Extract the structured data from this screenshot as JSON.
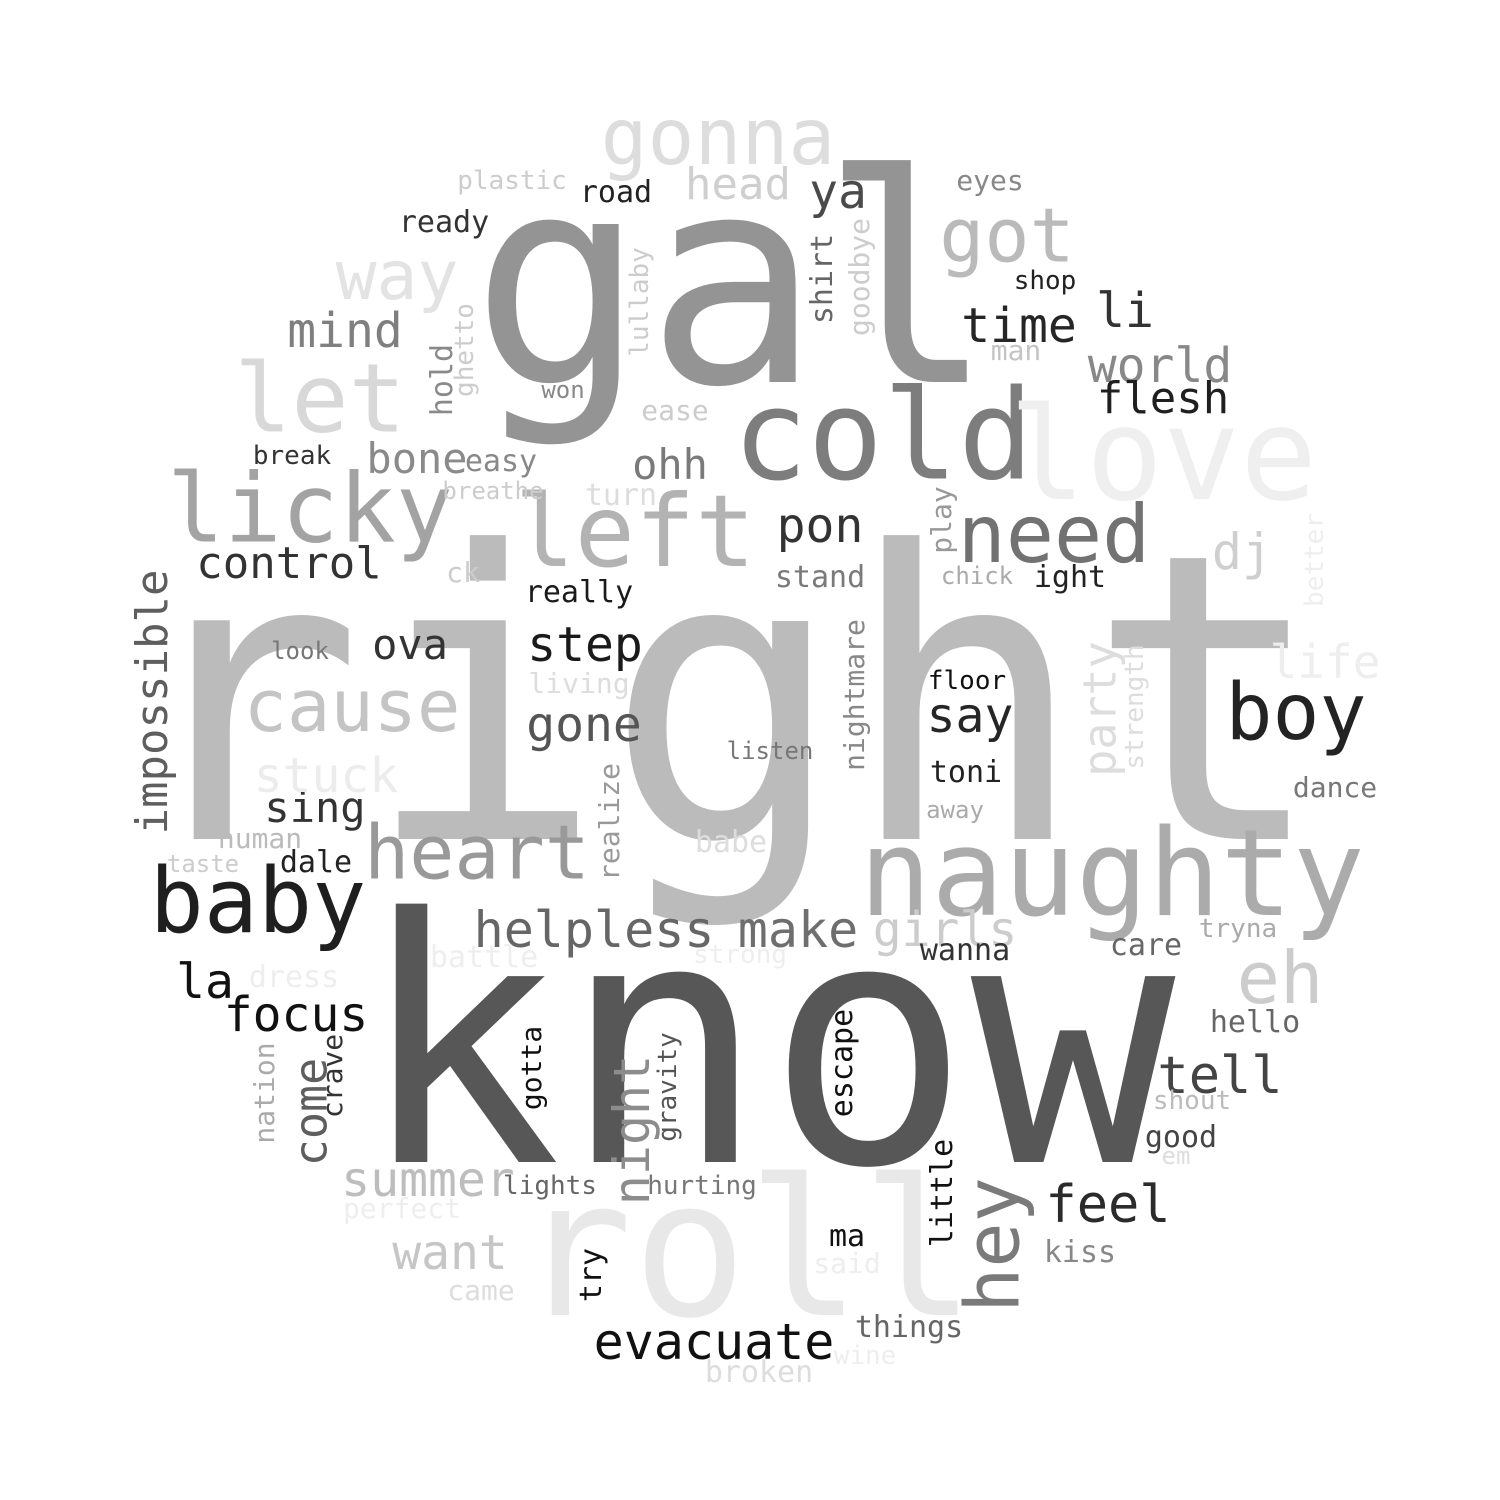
{
  "words": [
    {
      "text": "right",
      "color": "#bbbbbb"
    },
    {
      "text": "know",
      "color": "#575757"
    },
    {
      "text": "gal",
      "color": "#949494"
    },
    {
      "text": "roll",
      "color": "#e8e8e8"
    },
    {
      "text": "naughty",
      "color": "#ababab"
    },
    {
      "text": "cold",
      "color": "#7d7d7d"
    },
    {
      "text": "love",
      "color": "#efefef"
    },
    {
      "text": "licky",
      "color": "#a3a3a3"
    },
    {
      "text": "left",
      "color": "#b3b3b3"
    },
    {
      "text": "gonna",
      "color": "#dddddd"
    },
    {
      "text": "let",
      "color": "#d8d8d8"
    },
    {
      "text": "baby",
      "color": "#1f1f1f"
    },
    {
      "text": "need",
      "color": "#727272"
    },
    {
      "text": "heart",
      "color": "#999999"
    },
    {
      "text": "cause",
      "color": "#c4c4c4"
    },
    {
      "text": "boy",
      "color": "#232323"
    },
    {
      "text": "got",
      "color": "#bababa"
    },
    {
      "text": "way",
      "color": "#e3e3e3"
    },
    {
      "text": "eh",
      "color": "#cccccc"
    },
    {
      "text": "helpless",
      "color": "#666666"
    },
    {
      "text": "make",
      "color": "#6e6e6e"
    },
    {
      "text": "hey",
      "color": "#7a7a7a"
    },
    {
      "text": "evacuate",
      "color": "#111111"
    },
    {
      "text": "world",
      "color": "#888888"
    },
    {
      "text": "time",
      "color": "#262626"
    },
    {
      "text": "pon",
      "color": "#333333"
    },
    {
      "text": "mind",
      "color": "#7f7f7f"
    },
    {
      "text": "control",
      "color": "#333333"
    },
    {
      "text": "step",
      "color": "#1a1a1a"
    },
    {
      "text": "gone",
      "color": "#555555"
    },
    {
      "text": "focus",
      "color": "#111111"
    },
    {
      "text": "impossible",
      "color": "#5e5e5e"
    },
    {
      "text": "feel",
      "color": "#2b2b2b"
    },
    {
      "text": "tell",
      "color": "#444444"
    },
    {
      "text": "night",
      "color": "#8c8c8c"
    },
    {
      "text": "come",
      "color": "#5e5e5e"
    },
    {
      "text": "summer",
      "color": "#bdbdbd"
    },
    {
      "text": "want",
      "color": "#c6c6c6"
    },
    {
      "text": "party",
      "color": "#dddddd"
    },
    {
      "text": "girls",
      "color": "#cccccc"
    },
    {
      "text": "say",
      "color": "#262626"
    },
    {
      "text": "flesh",
      "color": "#1f1f1f"
    },
    {
      "text": "ya",
      "color": "#4a4a4a"
    },
    {
      "text": "head",
      "color": "#cfcfcf"
    },
    {
      "text": "ohh",
      "color": "#7a7a7a"
    },
    {
      "text": "bone",
      "color": "#8a8a8a"
    },
    {
      "text": "ova",
      "color": "#333333"
    },
    {
      "text": "sing",
      "color": "#333333"
    },
    {
      "text": "la",
      "color": "#111111"
    },
    {
      "text": "li",
      "color": "#333333"
    },
    {
      "text": "dj",
      "color": "#cfcfcf"
    },
    {
      "text": "life",
      "color": "#eeeeee"
    },
    {
      "text": "stuck",
      "color": "#ececec"
    },
    {
      "text": "ight",
      "color": "#222222"
    },
    {
      "text": "stand",
      "color": "#7a7a7a"
    },
    {
      "text": "really",
      "color": "#1a1a1a"
    },
    {
      "text": "ready",
      "color": "#333333"
    },
    {
      "text": "road",
      "color": "#222222"
    },
    {
      "text": "plastic",
      "color": "#cccccc"
    },
    {
      "text": "eyes",
      "color": "#888888"
    },
    {
      "text": "shop",
      "color": "#222222"
    },
    {
      "text": "man",
      "color": "#c4c4c4"
    },
    {
      "text": "shirt",
      "color": "#666666"
    },
    {
      "text": "goodbye",
      "color": "#cccccc"
    },
    {
      "text": "lullaby",
      "color": "#cccccc"
    },
    {
      "text": "ghetto",
      "color": "#cccccc"
    },
    {
      "text": "hold",
      "color": "#8a8a8a"
    },
    {
      "text": "won",
      "color": "#888888"
    },
    {
      "text": "ease",
      "color": "#cccccc"
    },
    {
      "text": "break",
      "color": "#333333"
    },
    {
      "text": "easy",
      "color": "#888888"
    },
    {
      "text": "breathe",
      "color": "#cccccc"
    },
    {
      "text": "turn",
      "color": "#dddddd"
    },
    {
      "text": "play",
      "color": "#999999"
    },
    {
      "text": "ck",
      "color": "#cccccc"
    },
    {
      "text": "chick",
      "color": "#aaaaaa"
    },
    {
      "text": "better",
      "color": "#eeeeee"
    },
    {
      "text": "look",
      "color": "#777777"
    },
    {
      "text": "living",
      "color": "#dddddd"
    },
    {
      "text": "floor",
      "color": "#111111"
    },
    {
      "text": "strength",
      "color": "#dddddd"
    },
    {
      "text": "nightmare",
      "color": "#888888"
    },
    {
      "text": "listen",
      "color": "#777777"
    },
    {
      "text": "toni",
      "color": "#222222"
    },
    {
      "text": "dance",
      "color": "#777777"
    },
    {
      "text": "away",
      "color": "#aaaaaa"
    },
    {
      "text": "realize",
      "color": "#999999"
    },
    {
      "text": "human",
      "color": "#bbbbbb"
    },
    {
      "text": "babe",
      "color": "#dddddd"
    },
    {
      "text": "taste",
      "color": "#cccccc"
    },
    {
      "text": "dale",
      "color": "#222222"
    },
    {
      "text": "wanna",
      "color": "#333333"
    },
    {
      "text": "care",
      "color": "#666666"
    },
    {
      "text": "tryna",
      "color": "#aaaaaa"
    },
    {
      "text": "battle",
      "color": "#eeeeee"
    },
    {
      "text": "strong",
      "color": "#eeeeee"
    },
    {
      "text": "dress",
      "color": "#eeeeee"
    },
    {
      "text": "hello",
      "color": "#666666"
    },
    {
      "text": "nation",
      "color": "#aaaaaa"
    },
    {
      "text": "crave",
      "color": "#333333"
    },
    {
      "text": "gotta",
      "color": "#111111"
    },
    {
      "text": "gravity",
      "color": "#555555"
    },
    {
      "text": "escape",
      "color": "#111111"
    },
    {
      "text": "shout",
      "color": "#bbbbbb"
    },
    {
      "text": "good",
      "color": "#444444"
    },
    {
      "text": "em",
      "color": "#dddddd"
    },
    {
      "text": "lights",
      "color": "#666666"
    },
    {
      "text": "hurting",
      "color": "#777777"
    },
    {
      "text": "little",
      "color": "#111111"
    },
    {
      "text": "perfect",
      "color": "#eeeeee"
    },
    {
      "text": "ma",
      "color": "#111111"
    },
    {
      "text": "said",
      "color": "#eeeeee"
    },
    {
      "text": "try",
      "color": "#111111"
    },
    {
      "text": "kiss",
      "color": "#888888"
    },
    {
      "text": "came",
      "color": "#dddddd"
    },
    {
      "text": "things",
      "color": "#666666"
    },
    {
      "text": "wine",
      "color": "#eeeeee"
    },
    {
      "text": "broken",
      "color": "#dddddd"
    }
  ]
}
